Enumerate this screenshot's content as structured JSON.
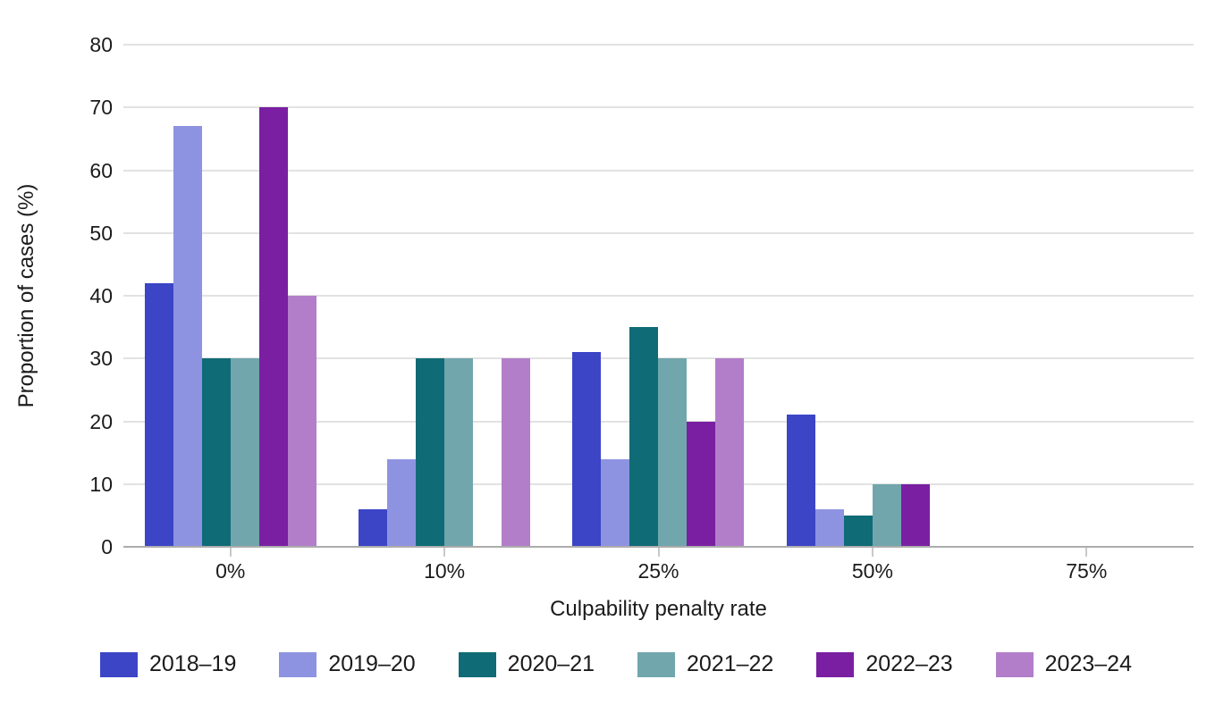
{
  "chart_data": {
    "type": "bar",
    "title": "",
    "xlabel": "Culpability penalty rate",
    "ylabel": "Proportion of cases (%)",
    "categories": [
      "0%",
      "10%",
      "25%",
      "50%",
      "75%"
    ],
    "series": [
      {
        "name": "2018–19",
        "color": "#3b45c6",
        "values": [
          42,
          6,
          31,
          21,
          0
        ]
      },
      {
        "name": "2019–20",
        "color": "#8e93e1",
        "values": [
          67,
          14,
          14,
          6,
          0
        ]
      },
      {
        "name": "2020–21",
        "color": "#0f6b75",
        "values": [
          30,
          30,
          35,
          5,
          0
        ]
      },
      {
        "name": "2021–22",
        "color": "#71a6ad",
        "values": [
          30,
          30,
          30,
          10,
          0
        ]
      },
      {
        "name": "2022–23",
        "color": "#7a1fa2",
        "values": [
          70,
          0,
          20,
          10,
          0
        ]
      },
      {
        "name": "2023–24",
        "color": "#b27ec9",
        "values": [
          40,
          30,
          30,
          0,
          0
        ]
      }
    ],
    "ylim": [
      0,
      80
    ],
    "yticks": [
      0,
      10,
      20,
      30,
      40,
      50,
      60,
      70,
      80
    ],
    "grid": "horizontal",
    "legend_position": "bottom"
  },
  "style": {
    "gridline_color": "#e2e2e2",
    "baseline_color": "#acacac",
    "tick_color": "#c9c9c9",
    "text_color": "#1b1b1b",
    "background_color": "#ffffff"
  }
}
